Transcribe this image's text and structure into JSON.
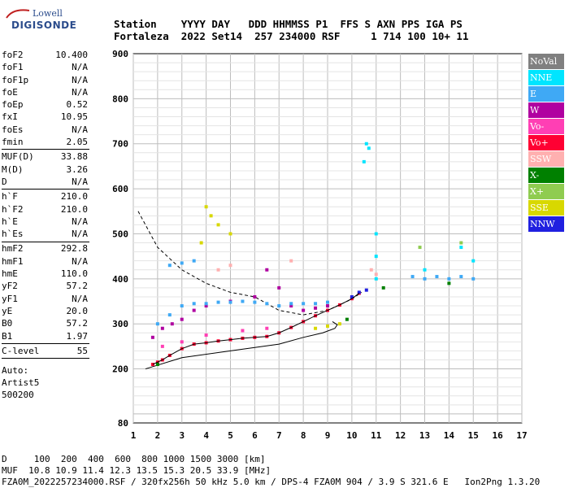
{
  "logo": {
    "line1": "Lowell",
    "line2": "DIGISONDE"
  },
  "header": {
    "line1": "Station    YYYY DAY   DDD HHMMSS P1  FFS S AXN PPS IGA PS",
    "line2": "Fortaleza  2022 Set14  257 234000 RSF     1 714 100 10+ 11"
  },
  "params": [
    {
      "label": "foF2",
      "value": "10.400"
    },
    {
      "label": "foF1",
      "value": "N/A"
    },
    {
      "label": "foF1p",
      "value": "N/A"
    },
    {
      "label": "foE",
      "value": "N/A"
    },
    {
      "label": "foEp",
      "value": "0.52"
    },
    {
      "label": "fxI",
      "value": "10.95"
    },
    {
      "label": "foEs",
      "value": "N/A"
    },
    {
      "label": "fmin",
      "value": "2.05"
    },
    {
      "label": "MUF(D)",
      "value": "33.88"
    },
    {
      "label": "M(D)",
      "value": "3.26"
    },
    {
      "label": "D",
      "value": "N/A"
    },
    {
      "label": "h`F",
      "value": "210.0"
    },
    {
      "label": "h`F2",
      "value": "210.0"
    },
    {
      "label": "h`E",
      "value": "N/A"
    },
    {
      "label": "h`Es",
      "value": "N/A"
    },
    {
      "label": "hmF2",
      "value": "292.8"
    },
    {
      "label": "hmF1",
      "value": "N/A"
    },
    {
      "label": "hmE",
      "value": "110.0"
    },
    {
      "label": "yF2",
      "value": "57.2"
    },
    {
      "label": "yF1",
      "value": "N/A"
    },
    {
      "label": "yE",
      "value": "20.0"
    },
    {
      "label": "B0",
      "value": "57.2"
    },
    {
      "label": "B1",
      "value": "1.97"
    },
    {
      "label": "C-level",
      "value": "55"
    }
  ],
  "auto": {
    "line1": "Auto:",
    "line2": "Artist5",
    "line3": "500200"
  },
  "footer": {
    "line1": "D     100  200  400  600  800 1000 1500 3000 [km]",
    "line2": "MUF  10.8 10.9 11.4 12.3 13.5 15.3 20.5 33.9 [MHz]",
    "line3": "FZA0M_2022257234000.RSF / 320fx256h 50 kHz 5.0 km / DPS-4 FZA0M 904 / 3.9 S 321.6 E   Ion2Png 1.3.20"
  },
  "legend": [
    {
      "label": "NoVal",
      "color": "#808080"
    },
    {
      "label": "NNE",
      "color": "#00e5ff"
    },
    {
      "label": "E",
      "color": "#3fa9f5"
    },
    {
      "label": "W",
      "color": "#b000a0"
    },
    {
      "label": "Vo-",
      "color": "#ff3fb4"
    },
    {
      "label": "Vo+",
      "color": "#ff0033"
    },
    {
      "label": "SSW",
      "color": "#ffb0b0"
    },
    {
      "label": "X-",
      "color": "#008000"
    },
    {
      "label": "X+",
      "color": "#8fcc50"
    },
    {
      "label": "SSE",
      "color": "#d8d800"
    },
    {
      "label": "NNW",
      "color": "#2020e0"
    }
  ],
  "chart_data": {
    "type": "scatter",
    "xlim": [
      1,
      17
    ],
    "ylim": [
      80,
      900
    ],
    "xticks": [
      "1",
      "2",
      "3",
      "4",
      "5",
      "6",
      "7",
      "8",
      "9",
      "10",
      "11",
      "12",
      "13",
      "14",
      "15",
      "16",
      "17"
    ],
    "yticks": [
      "80",
      "200",
      "300",
      "400",
      "500",
      "600",
      "700",
      "800",
      "900"
    ],
    "grid": true,
    "legend_position": "right",
    "series": [
      {
        "color": "#ff0033",
        "points": [
          [
            1.8,
            210
          ],
          [
            2.0,
            215
          ],
          [
            2.2,
            220
          ],
          [
            2.5,
            230
          ],
          [
            3.0,
            245
          ],
          [
            3.5,
            255
          ],
          [
            4.0,
            258
          ],
          [
            4.5,
            262
          ],
          [
            5.0,
            265
          ],
          [
            5.5,
            268
          ],
          [
            6.0,
            270
          ],
          [
            6.5,
            272
          ],
          [
            7.0,
            280
          ],
          [
            7.5,
            292
          ],
          [
            8.0,
            305
          ],
          [
            8.5,
            318
          ],
          [
            9.0,
            330
          ],
          [
            9.5,
            342
          ],
          [
            10.0,
            356
          ],
          [
            10.3,
            368
          ]
        ]
      },
      {
        "color": "#b000a0",
        "points": [
          [
            1.8,
            270
          ],
          [
            2.2,
            290
          ],
          [
            2.6,
            300
          ],
          [
            3.0,
            310
          ],
          [
            3.5,
            330
          ],
          [
            4.0,
            340
          ],
          [
            5.0,
            350
          ],
          [
            6.0,
            360
          ],
          [
            6.5,
            420
          ],
          [
            7.0,
            380
          ],
          [
            7.5,
            340
          ],
          [
            8.0,
            330
          ],
          [
            8.5,
            335
          ],
          [
            9.0,
            340
          ]
        ]
      },
      {
        "color": "#3fa9f5",
        "points": [
          [
            2.0,
            300
          ],
          [
            2.5,
            320
          ],
          [
            3.0,
            340
          ],
          [
            3.5,
            345
          ],
          [
            4.0,
            345
          ],
          [
            4.5,
            348
          ],
          [
            5.0,
            348
          ],
          [
            5.5,
            350
          ],
          [
            6.0,
            348
          ],
          [
            6.5,
            345
          ],
          [
            7.0,
            340
          ],
          [
            7.5,
            345
          ],
          [
            8.0,
            345
          ],
          [
            8.5,
            345
          ],
          [
            9.0,
            348
          ],
          [
            2.5,
            430
          ],
          [
            3.0,
            435
          ],
          [
            3.5,
            440
          ],
          [
            12.5,
            405
          ],
          [
            13.0,
            400
          ],
          [
            13.5,
            405
          ],
          [
            14.0,
            400
          ],
          [
            14.5,
            405
          ],
          [
            15.0,
            400
          ]
        ]
      },
      {
        "color": "#00e5ff",
        "points": [
          [
            10.6,
            700
          ],
          [
            10.7,
            690
          ],
          [
            10.5,
            660
          ],
          [
            11.0,
            500
          ],
          [
            11.0,
            450
          ],
          [
            11.0,
            400
          ],
          [
            13.0,
            420
          ],
          [
            14.5,
            470
          ],
          [
            15.0,
            440
          ]
        ]
      },
      {
        "color": "#d8d800",
        "points": [
          [
            4.0,
            560
          ],
          [
            4.2,
            540
          ],
          [
            4.5,
            520
          ],
          [
            5.0,
            500
          ],
          [
            3.8,
            480
          ],
          [
            8.5,
            290
          ],
          [
            9.0,
            295
          ],
          [
            9.5,
            300
          ]
        ]
      },
      {
        "color": "#2020e0",
        "points": [
          [
            10.0,
            360
          ],
          [
            10.3,
            370
          ],
          [
            10.6,
            375
          ]
        ]
      },
      {
        "color": "#008000",
        "points": [
          [
            2.0,
            210
          ],
          [
            9.8,
            310
          ],
          [
            11.3,
            380
          ],
          [
            14.0,
            390
          ]
        ]
      },
      {
        "color": "#ffb0b0",
        "points": [
          [
            4.5,
            420
          ],
          [
            5.0,
            430
          ],
          [
            7.5,
            440
          ],
          [
            10.8,
            420
          ],
          [
            11.0,
            410
          ]
        ]
      },
      {
        "color": "#8fcc50",
        "points": [
          [
            12.8,
            470
          ],
          [
            14.5,
            480
          ]
        ]
      },
      {
        "color": "#ff3fb4",
        "points": [
          [
            2.2,
            250
          ],
          [
            3.0,
            260
          ],
          [
            4.0,
            275
          ],
          [
            5.5,
            285
          ],
          [
            6.5,
            290
          ]
        ]
      }
    ],
    "profile_curve": [
      [
        1.5,
        200
      ],
      [
        3,
        225
      ],
      [
        5,
        240
      ],
      [
        7,
        255
      ],
      [
        8,
        270
      ],
      [
        8.8,
        280
      ],
      [
        9.3,
        290
      ],
      [
        9.4,
        298
      ],
      [
        9.2,
        305
      ]
    ],
    "dashed_curve": [
      [
        1.2,
        550
      ],
      [
        2,
        470
      ],
      [
        3,
        420
      ],
      [
        4,
        390
      ],
      [
        5,
        370
      ],
      [
        6,
        360
      ],
      [
        7,
        330
      ],
      [
        8,
        320
      ],
      [
        9,
        330
      ],
      [
        10,
        355
      ],
      [
        10.4,
        370
      ]
    ]
  }
}
